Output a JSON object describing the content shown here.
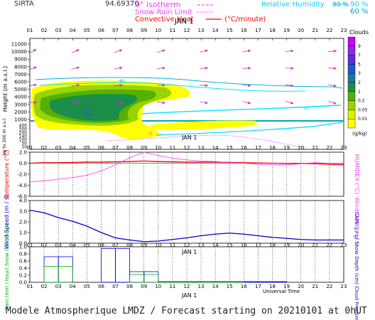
{
  "header": {
    "station": "SIRTA",
    "station_num": "94.69370",
    "date": "JAN  1",
    "legend": {
      "zero_isotherm": "0° isotherm",
      "snow_rain_limit": "Snow-Rain Limit",
      "convective_heat": "Convective Heat",
      "convective_unit": "(°C/minute)",
      "rh_label": "Relative Humidity",
      "rh_90": "90 %",
      "rh_60": "60 %"
    }
  },
  "footer": "Modele Atmospherique LMDZ / Forecast starting on 20210101 at 0hUT",
  "colors": {
    "zero_isotherm": "#ff33ff",
    "snow_rain_limit": "#ff33ff",
    "convective_heat": "#ff0000",
    "rh_90": "#00e5ff",
    "rh_60": "#00b5d5",
    "cloud_scale": [
      "#ffff00",
      "#d9f000",
      "#99d400",
      "#55b100",
      "#1b8f4a",
      "#1a7a9a",
      "#2655c8",
      "#5a2fd1",
      "#8a2be2",
      "#c800ff"
    ],
    "temperature": "#ff0000",
    "humidex": "#ff33ff",
    "wind_speed": "#0000cc",
    "rain": "#00aa00",
    "snow": "#0000ff"
  },
  "chart_data": [
    {
      "type": "heatmap",
      "title": "Clouds",
      "ylabel": "Height  (m a.s.l.)",
      "x_ticks": [
        "01",
        "02",
        "03",
        "04",
        "05",
        "06",
        "07",
        "08",
        "09",
        "10",
        "11",
        "12",
        "13",
        "14",
        "15",
        "16",
        "17",
        "18",
        "19",
        "20",
        "21",
        "22",
        "23"
      ],
      "y_ticks": [
        "11000",
        "10000",
        "9000",
        "8000",
        "7000",
        "6000",
        "5000",
        "4000",
        "3000",
        "2000",
        "1000"
      ],
      "low_ticks": [
        "400",
        "300",
        "200",
        "140",
        "100",
        "50",
        "10"
      ],
      "low_axis_label": "Up to 200 m a.s.l.",
      "colorbar": {
        "labels": [
          "9",
          "7",
          "5",
          "3",
          "2",
          "1",
          "0.2",
          "0.05",
          "0.01"
        ],
        "unit": "(g/kg)"
      },
      "contour_labels": [
        "60",
        "90",
        "0"
      ]
    },
    {
      "type": "line",
      "ylabel": "Temperature (°C)",
      "y2label": "HUMIDEX (°C)",
      "y_ticks": [
        "2.0",
        "0.0",
        "-2.0",
        "-4.0",
        "-6.0"
      ],
      "ylim": [
        -6.0,
        2.0
      ],
      "x_ticks": [
        "01",
        "02",
        "03",
        "04",
        "05",
        "06",
        "07",
        "08",
        "09",
        "10",
        "11",
        "12",
        "13",
        "14",
        "15",
        "16",
        "17",
        "18",
        "19",
        "20",
        "21",
        "22",
        "23"
      ],
      "date": "JAN  1",
      "series": [
        {
          "values": [
            0.0,
            0.1,
            0.1,
            0.15,
            0.2,
            0.2,
            0.25,
            0.3,
            0.4,
            0.3,
            0.25,
            0.2,
            0.2,
            0.2,
            0.15,
            0.1,
            0.05,
            0.0,
            -0.05,
            -0.05,
            -0.1,
            -0.2,
            -0.3
          ]
        },
        {
          "values": [
            -3.4,
            -3.2,
            -2.9,
            -2.6,
            -2.2,
            -1.4,
            -0.3,
            1.0,
            2.0,
            1.4,
            0.9,
            0.6,
            0.4,
            0.3,
            0.1,
            0.0,
            -0.2,
            -0.3,
            -0.3,
            -0.1,
            0.1,
            0.0,
            -0.1
          ]
        }
      ]
    },
    {
      "type": "line",
      "ylabel": "Wind Speed (m / s)",
      "y2label": "Wind Gust (m / s)",
      "y_ticks": [
        "0.0",
        "1.0",
        "2.0",
        "3.0",
        "4.0"
      ],
      "ylim": [
        0,
        4
      ],
      "series": [
        {
          "values": [
            3.1,
            2.85,
            2.4,
            2.05,
            1.6,
            1.0,
            0.5,
            0.3,
            0.15,
            0.2,
            0.35,
            0.5,
            0.7,
            0.85,
            0.95,
            0.85,
            0.7,
            0.55,
            0.45,
            0.35,
            0.3,
            0.3,
            0.3
          ]
        }
      ]
    },
    {
      "type": "bar",
      "ylabel": "Rain (mm / hour) Snow (cm / hour)",
      "y2label": "CAPE (J / g) Snow Depth (cm) Cloud Fraction",
      "y_ticks": [
        "0.0",
        "0.2",
        "0.4",
        "0.6",
        "0.8",
        "1.0"
      ],
      "ylim": [
        0,
        1.0
      ],
      "x_ticks": [
        "01",
        "02",
        "03",
        "04",
        "05",
        "06",
        "07",
        "08",
        "09",
        "10",
        "11",
        "12",
        "13",
        "14",
        "15",
        "16",
        "17",
        "18",
        "19",
        "20",
        "21",
        "22",
        "23"
      ],
      "date": "JAN  1",
      "xlabel": "Universal Time",
      "series": [
        {
          "values": [
            0.0,
            0.72,
            0.72,
            0.0,
            0.0,
            0.95,
            0.95,
            0.3,
            0.3,
            0.02,
            0.02,
            0.02,
            0.02,
            0.02,
            0.02,
            0.02,
            0.02,
            0.02,
            0.0,
            0.0,
            0.0,
            0.0
          ]
        },
        {
          "values": [
            0.0,
            0.45,
            0.45,
            0.0,
            0.0,
            0.0,
            0.0,
            0.22,
            0.22,
            0.01,
            0.01,
            0.01,
            0.01,
            0.01,
            0.01,
            0.0,
            0.0,
            0.0,
            0.0,
            0.0,
            0.0,
            0.0
          ]
        }
      ]
    }
  ]
}
